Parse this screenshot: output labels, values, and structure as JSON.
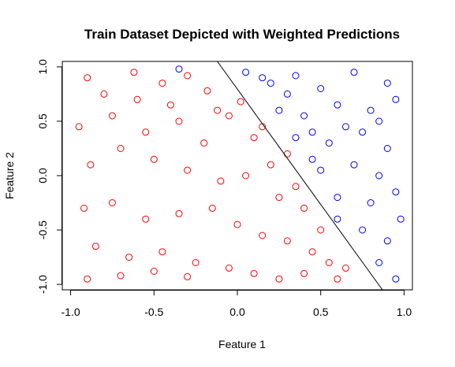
{
  "chart_data": {
    "type": "scatter",
    "title": "Train Dataset Depicted with Weighted Predictions",
    "xlabel": "Feature 1",
    "ylabel": "Feature 2",
    "xlim": [
      -1.05,
      1.05
    ],
    "ylim": [
      -1.05,
      1.05
    ],
    "x_ticks": [
      "-1.0",
      "-0.5",
      "0.0",
      "0.5",
      "1.0"
    ],
    "y_ticks": [
      "-1.0",
      "-0.5",
      "0.0",
      "0.5",
      "1.0"
    ],
    "grid": false,
    "legend": "none",
    "marker": "open-circle",
    "boundary_line": {
      "x": [
        -0.12,
        0.87
      ],
      "y": [
        1.05,
        -1.05
      ],
      "color": "#000000"
    },
    "series": [
      {
        "color": "#ff0000",
        "points": [
          [
            -0.9,
            0.9
          ],
          [
            -0.8,
            0.75
          ],
          [
            -0.62,
            0.95
          ],
          [
            -0.45,
            0.85
          ],
          [
            -0.3,
            0.92
          ],
          [
            -0.12,
            0.6
          ],
          [
            -0.95,
            0.45
          ],
          [
            -0.75,
            0.55
          ],
          [
            -0.55,
            0.4
          ],
          [
            -0.35,
            0.5
          ],
          [
            -0.2,
            0.3
          ],
          [
            -0.05,
            0.55
          ],
          [
            0.1,
            0.35
          ],
          [
            0.2,
            0.1
          ],
          [
            -0.88,
            0.1
          ],
          [
            -0.7,
            0.25
          ],
          [
            -0.5,
            0.15
          ],
          [
            -0.3,
            0.05
          ],
          [
            -0.1,
            -0.05
          ],
          [
            0.05,
            0.0
          ],
          [
            0.25,
            -0.2
          ],
          [
            0.35,
            -0.1
          ],
          [
            -0.92,
            -0.3
          ],
          [
            -0.75,
            -0.25
          ],
          [
            -0.55,
            -0.4
          ],
          [
            -0.35,
            -0.35
          ],
          [
            -0.15,
            -0.3
          ],
          [
            0.0,
            -0.45
          ],
          [
            0.15,
            -0.55
          ],
          [
            0.3,
            -0.6
          ],
          [
            0.45,
            -0.7
          ],
          [
            0.55,
            -0.8
          ],
          [
            -0.85,
            -0.65
          ],
          [
            -0.65,
            -0.75
          ],
          [
            -0.45,
            -0.7
          ],
          [
            -0.25,
            -0.8
          ],
          [
            -0.05,
            -0.85
          ],
          [
            0.1,
            -0.9
          ],
          [
            0.25,
            -0.95
          ],
          [
            0.4,
            -0.9
          ],
          [
            -0.9,
            -0.95
          ],
          [
            -0.7,
            -0.92
          ],
          [
            -0.5,
            -0.88
          ],
          [
            -0.3,
            -0.93
          ],
          [
            0.6,
            -0.95
          ],
          [
            0.65,
            -0.85
          ],
          [
            -0.18,
            0.78
          ],
          [
            0.02,
            0.68
          ],
          [
            -0.6,
            0.7
          ],
          [
            -0.4,
            0.65
          ],
          [
            0.15,
            0.45
          ],
          [
            0.3,
            0.2
          ],
          [
            0.4,
            -0.3
          ],
          [
            0.5,
            -0.5
          ]
        ]
      },
      {
        "color": "#0000ff",
        "points": [
          [
            0.05,
            0.95
          ],
          [
            0.2,
            0.85
          ],
          [
            0.35,
            0.92
          ],
          [
            0.5,
            0.8
          ],
          [
            0.7,
            0.95
          ],
          [
            0.9,
            0.85
          ],
          [
            0.25,
            0.6
          ],
          [
            0.4,
            0.55
          ],
          [
            0.6,
            0.65
          ],
          [
            0.8,
            0.6
          ],
          [
            0.95,
            0.7
          ],
          [
            0.35,
            0.35
          ],
          [
            0.55,
            0.3
          ],
          [
            0.75,
            0.4
          ],
          [
            0.9,
            0.25
          ],
          [
            0.5,
            0.05
          ],
          [
            0.7,
            0.1
          ],
          [
            0.85,
            0.0
          ],
          [
            0.6,
            -0.2
          ],
          [
            0.8,
            -0.25
          ],
          [
            0.95,
            -0.15
          ],
          [
            0.75,
            -0.5
          ],
          [
            0.9,
            -0.6
          ],
          [
            0.85,
            -0.8
          ],
          [
            0.95,
            -0.95
          ],
          [
            0.45,
            0.15
          ],
          [
            0.65,
            0.45
          ],
          [
            0.3,
            0.75
          ],
          [
            0.15,
            0.9
          ],
          [
            -0.35,
            0.98
          ],
          [
            0.6,
            -0.4
          ],
          [
            0.98,
            -0.4
          ],
          [
            0.45,
            0.4
          ],
          [
            0.85,
            0.5
          ]
        ]
      }
    ]
  }
}
